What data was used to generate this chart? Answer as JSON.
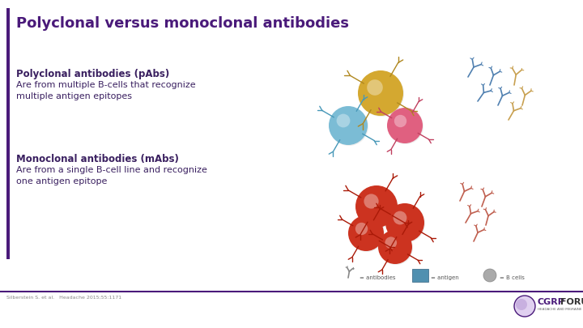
{
  "title": "Polyclonal versus monoclonal antibodies",
  "title_color": "#4a1a7a",
  "title_fontsize": 13,
  "bg_color": "#ffffff",
  "left_bar_color": "#4a1a7a",
  "section1_header": "Polyclonal antibodies (pAbs)",
  "section1_body": "Are from multiple B-cells that recognize\nmultiple antigen epitopes",
  "section2_header": "Monoclonal antibodies (mAbs)",
  "section2_body": "Are from a single B-cell line and recognize\none antigen epitope",
  "header_fontsize": 8.5,
  "body_fontsize": 8,
  "text_color": "#3a2060",
  "footer_text": "Silberstein S. et al.   Headache 2015;55:1171",
  "footer_fontsize": 4.5,
  "bottom_line_color": "#4a1a7a",
  "poly_bcell_colors": [
    "#d4a830",
    "#7bbcd5",
    "#e06080"
  ],
  "mono_bcell_color": "#cc3320",
  "poly_ab_colors": [
    "#5080b0",
    "#5080b0",
    "#c8a050",
    "#5080b0",
    "#c8a050",
    "#5080b0"
  ],
  "mono_ab_color": "#c06050"
}
